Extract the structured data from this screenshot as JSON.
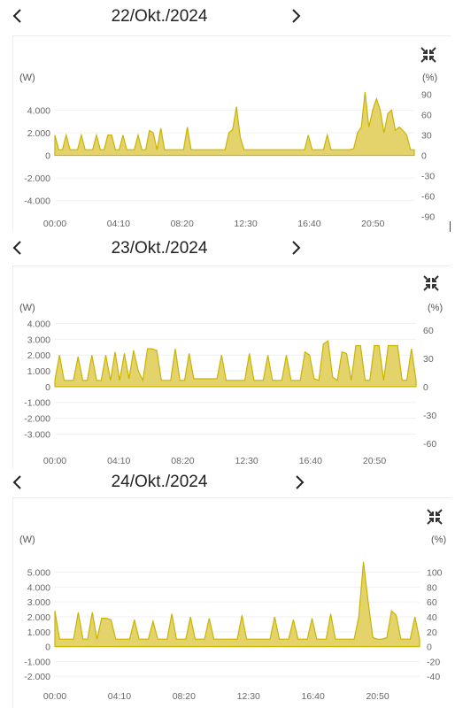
{
  "panels": [
    {
      "date": "22/Okt./2024",
      "left_unit": "(W)",
      "right_unit": "(%)",
      "chart_data": {
        "type": "area",
        "x_ticks": [
          "00:00",
          "04:10",
          "08:20",
          "12:30",
          "16:40",
          "20:50"
        ],
        "y_ticks_left": [
          "4.000",
          "2.000",
          "0",
          "-2.000",
          "-4.000"
        ],
        "y_ticks_right": [
          "90",
          "60",
          "30",
          "0",
          "-30",
          "-60",
          "-90"
        ],
        "ylim": [
          -5200,
          5600
        ],
        "series": [
          {
            "values": [
              1800,
              500,
              500,
              1800,
              500,
              500,
              500,
              1800,
              500,
              500,
              500,
              1800,
              500,
              500,
              1800,
              1800,
              500,
              500,
              1800,
              500,
              500,
              500,
              1800,
              500,
              500,
              2200,
              2000,
              500,
              2400,
              500,
              500,
              500,
              500,
              500,
              500,
              2500,
              500,
              500,
              500,
              500,
              500,
              500,
              500,
              500,
              500,
              500,
              2000,
              2300,
              4300,
              1600,
              500,
              500,
              500,
              500,
              500,
              500,
              500,
              500,
              500,
              500,
              500,
              500,
              500,
              500,
              500,
              500,
              500,
              1800,
              500,
              500,
              500,
              500,
              1800,
              500,
              500,
              500,
              500,
              500,
              500,
              600,
              2000,
              2500,
              5600,
              2500,
              4000,
              5000,
              4000,
              2000,
              3700,
              4000,
              2200,
              2500,
              2200,
              1800,
              500,
              500
            ]
          }
        ]
      }
    },
    {
      "date": "23/Okt./2024",
      "left_unit": "(W)",
      "right_unit": "(%)",
      "chart_data": {
        "type": "area",
        "x_ticks": [
          "00:00",
          "04:10",
          "08:20",
          "12:30",
          "16:40",
          "20:50"
        ],
        "y_ticks_left": [
          "4.000",
          "3.000",
          "2.000",
          "1.000",
          "0",
          "-1.000",
          "-2.000",
          "-3.000"
        ],
        "y_ticks_right": [
          "60",
          "30",
          "0",
          "-30",
          "-60"
        ],
        "ylim": [
          -4100,
          4200
        ],
        "series": [
          {
            "values": [
              400,
              2000,
              400,
              400,
              400,
              1900,
              400,
              400,
              2000,
              400,
              400,
              2000,
              400,
              2200,
              400,
              2100,
              500,
              2300,
              1000,
              400,
              2400,
              2400,
              2300,
              400,
              400,
              400,
              2400,
              400,
              400,
              2100,
              500,
              500,
              500,
              500,
              500,
              500,
              2000,
              400,
              400,
              400,
              400,
              400,
              2100,
              400,
              400,
              400,
              2000,
              400,
              400,
              400,
              2000,
              400,
              400,
              400,
              2200,
              2000,
              500,
              400,
              2700,
              2900,
              600,
              400,
              2200,
              2100,
              400,
              2600,
              2600,
              400,
              400,
              2600,
              2600,
              400,
              2600,
              2600,
              2600,
              400,
              400,
              2400,
              400
            ]
          }
        ]
      }
    },
    {
      "date": "24/Okt./2024",
      "left_unit": "(W)",
      "right_unit": "(%)",
      "chart_data": {
        "type": "area",
        "x_ticks": [
          "00:00",
          "04:10",
          "08:20",
          "12:30",
          "16:40",
          "20:50"
        ],
        "y_ticks_left": [
          "5.000",
          "4.000",
          "3.000",
          "2.000",
          "1.000",
          "0",
          "-1.000",
          "-2.000"
        ],
        "y_ticks_right": [
          "100",
          "80",
          "60",
          "40",
          "20",
          "0",
          "-20",
          "-40"
        ],
        "ylim": [
          -2700,
          6100
        ],
        "series": [
          {
            "values": [
              2400,
              500,
              500,
              500,
              500,
              2300,
              500,
              500,
              2300,
              500,
              1900,
              1900,
              1800,
              500,
              500,
              500,
              500,
              1800,
              500,
              500,
              500,
              1700,
              500,
              500,
              500,
              2200,
              500,
              500,
              500,
              2000,
              500,
              500,
              500,
              1900,
              500,
              500,
              500,
              500,
              500,
              500,
              2100,
              500,
              500,
              500,
              500,
              500,
              500,
              2000,
              500,
              500,
              500,
              1800,
              500,
              500,
              500,
              1900,
              500,
              500,
              500,
              2200,
              500,
              500,
              500,
              500,
              500,
              2000,
              5700,
              3000,
              600,
              500,
              500,
              600,
              2400,
              2100,
              500,
              500,
              500,
              2000,
              500
            ]
          }
        ]
      }
    }
  ],
  "icons": {
    "prev": "chevron-left-icon",
    "next": "chevron-right-icon",
    "collapse": "collapse-arrows-icon"
  },
  "colors": {
    "fill": "#e3d36a",
    "stroke": "#c9b400"
  }
}
